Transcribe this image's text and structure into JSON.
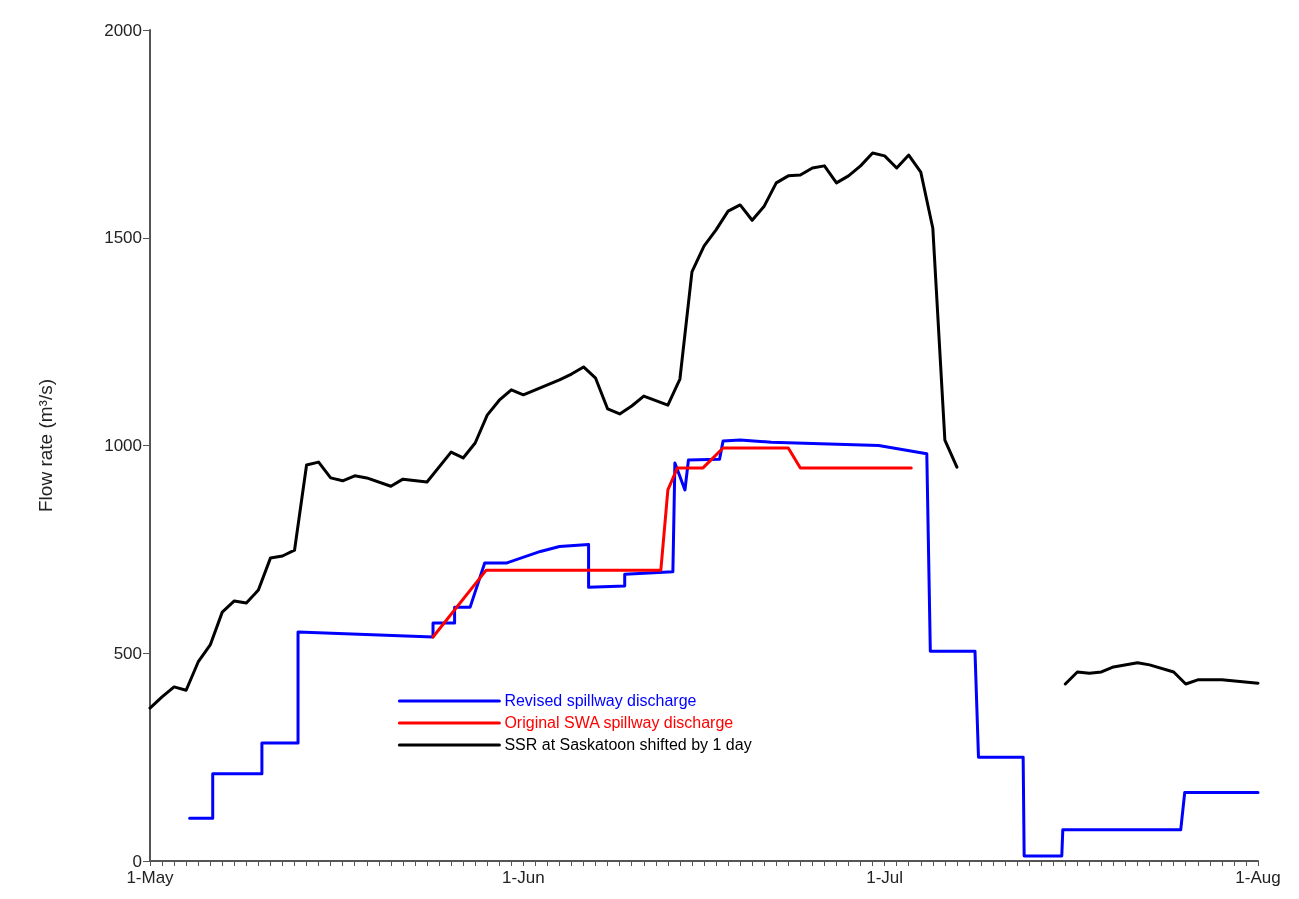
{
  "chart_data": {
    "type": "line",
    "ylabel": "Flow rate (m³/s)",
    "xlim": [
      "--05-01",
      "--08-01"
    ],
    "ylim": [
      0,
      2000
    ],
    "yticks": [
      0,
      500,
      1000,
      1500,
      2000
    ],
    "xticks": [
      {
        "value": "--05-01",
        "label": "1-May"
      },
      {
        "value": "--05-02",
        "label": null
      },
      {
        "value": "--05-03",
        "label": null
      },
      {
        "value": "--05-04",
        "label": null
      },
      {
        "value": "--05-05",
        "label": null
      },
      {
        "value": "--05-06",
        "label": null
      },
      {
        "value": "--05-07",
        "label": null
      },
      {
        "value": "--05-08",
        "label": null
      },
      {
        "value": "--05-09",
        "label": null
      },
      {
        "value": "--05-10",
        "label": null
      },
      {
        "value": "--05-11",
        "label": null
      },
      {
        "value": "--05-12",
        "label": null
      },
      {
        "value": "--05-13",
        "label": null
      },
      {
        "value": "--05-14",
        "label": null
      },
      {
        "value": "--05-15",
        "label": null
      },
      {
        "value": "--05-16",
        "label": null
      },
      {
        "value": "--05-17",
        "label": null
      },
      {
        "value": "--05-18",
        "label": null
      },
      {
        "value": "--05-19",
        "label": null
      },
      {
        "value": "--05-20",
        "label": null
      },
      {
        "value": "--05-21",
        "label": null
      },
      {
        "value": "--05-22",
        "label": null
      },
      {
        "value": "--05-23",
        "label": null
      },
      {
        "value": "--05-24",
        "label": null
      },
      {
        "value": "--05-25",
        "label": null
      },
      {
        "value": "--05-26",
        "label": null
      },
      {
        "value": "--05-27",
        "label": null
      },
      {
        "value": "--05-28",
        "label": null
      },
      {
        "value": "--05-29",
        "label": null
      },
      {
        "value": "--05-30",
        "label": null
      },
      {
        "value": "--05-31",
        "label": null
      },
      {
        "value": "--06-01",
        "label": "1-Jun"
      },
      {
        "value": "--06-02",
        "label": null
      },
      {
        "value": "--06-03",
        "label": null
      },
      {
        "value": "--06-04",
        "label": null
      },
      {
        "value": "--06-05",
        "label": null
      },
      {
        "value": "--06-06",
        "label": null
      },
      {
        "value": "--06-07",
        "label": null
      },
      {
        "value": "--06-08",
        "label": null
      },
      {
        "value": "--06-09",
        "label": null
      },
      {
        "value": "--06-10",
        "label": null
      },
      {
        "value": "--06-11",
        "label": null
      },
      {
        "value": "--06-12",
        "label": null
      },
      {
        "value": "--06-13",
        "label": null
      },
      {
        "value": "--06-14",
        "label": null
      },
      {
        "value": "--06-15",
        "label": null
      },
      {
        "value": "--06-16",
        "label": null
      },
      {
        "value": "--06-17",
        "label": null
      },
      {
        "value": "--06-18",
        "label": null
      },
      {
        "value": "--06-19",
        "label": null
      },
      {
        "value": "--06-20",
        "label": null
      },
      {
        "value": "--06-21",
        "label": null
      },
      {
        "value": "--06-22",
        "label": null
      },
      {
        "value": "--06-23",
        "label": null
      },
      {
        "value": "--06-24",
        "label": null
      },
      {
        "value": "--06-25",
        "label": null
      },
      {
        "value": "--06-26",
        "label": null
      },
      {
        "value": "--06-27",
        "label": null
      },
      {
        "value": "--06-28",
        "label": null
      },
      {
        "value": "--06-29",
        "label": null
      },
      {
        "value": "--06-30",
        "label": null
      },
      {
        "value": "--07-01",
        "label": "1-Jul"
      },
      {
        "value": "--07-02",
        "label": null
      },
      {
        "value": "--07-03",
        "label": null
      },
      {
        "value": "--07-04",
        "label": null
      },
      {
        "value": "--07-05",
        "label": null
      },
      {
        "value": "--07-06",
        "label": null
      },
      {
        "value": "--07-07",
        "label": null
      },
      {
        "value": "--07-08",
        "label": null
      },
      {
        "value": "--07-09",
        "label": null
      },
      {
        "value": "--07-10",
        "label": null
      },
      {
        "value": "--07-11",
        "label": null
      },
      {
        "value": "--07-12",
        "label": null
      },
      {
        "value": "--07-13",
        "label": null
      },
      {
        "value": "--07-14",
        "label": null
      },
      {
        "value": "--07-15",
        "label": null
      },
      {
        "value": "--07-16",
        "label": null
      },
      {
        "value": "--07-17",
        "label": null
      },
      {
        "value": "--07-18",
        "label": null
      },
      {
        "value": "--07-19",
        "label": null
      },
      {
        "value": "--07-20",
        "label": null
      },
      {
        "value": "--07-21",
        "label": null
      },
      {
        "value": "--07-22",
        "label": null
      },
      {
        "value": "--07-23",
        "label": null
      },
      {
        "value": "--07-24",
        "label": null
      },
      {
        "value": "--07-25",
        "label": null
      },
      {
        "value": "--07-26",
        "label": null
      },
      {
        "value": "--07-27",
        "label": null
      },
      {
        "value": "--07-28",
        "label": null
      },
      {
        "value": "--07-29",
        "label": null
      },
      {
        "value": "--07-30",
        "label": null
      },
      {
        "value": "--07-31",
        "label": null
      },
      {
        "value": "--08-01",
        "label": "1-Aug"
      }
    ],
    "grid": false,
    "legend": "bottom",
    "marker": "none",
    "line_style": "solid",
    "series": [
      {
        "name": "Revised spillway discharge",
        "color": "#0000ff",
        "x": [
          "--05-04T07:00",
          "--05-06T05:00",
          "--05-06T05:00",
          "--05-10T07:00",
          "--05-10T07:00",
          "--05-13T07:00",
          "--05-13T07:00",
          "--05-24T12:00",
          "--05-24T12:00",
          "--05-26T07:00",
          "--05-26T07:00",
          "--05-27T14:00",
          "--05-28T19:00",
          "--05-30T14:00",
          "--06-02T10:00",
          "--06-04",
          "--06-06T10:00",
          "--06-06T10:00",
          "--06-09T10:00",
          "--06-09T10:00",
          "--06-13T10:00",
          "--06-13T14:00",
          "--06-14T10:00",
          "--06-14T17:00",
          "--06-17T07:00",
          "--06-17T14:00",
          "--06-19",
          "--06-21T14:00",
          "--06-30T12:00",
          "--07-04T12:00",
          "--07-04T19:00",
          "--07-08T12:00",
          "--07-08T19:00",
          "--07-12T12:00",
          "--07-12T14:00",
          "--07-15T17:00",
          "--07-15T19:00",
          "--07-25T14:00",
          "--07-25T22:00",
          "--08-01"
        ],
        "values": [
          103,
          103,
          210,
          210,
          284,
          284,
          551,
          539,
          573,
          573,
          611,
          611,
          717,
          717,
          745,
          757,
          762,
          659,
          662,
          690,
          696,
          958,
          893,
          965,
          967,
          1011,
          1013,
          1008,
          1000,
          980,
          505,
          505,
          250,
          250,
          12,
          12,
          75,
          75,
          165,
          165
        ]
      },
      {
        "name": "Original SWA spillway discharge",
        "color": "#ff0000",
        "x": [
          "--05-24T12:00",
          "--05-28T22:00",
          "--06-12T10:00",
          "--06-13",
          "--06-13T19:00",
          "--06-15T22:00",
          "--06-17T14:00",
          "--06-23",
          "--06-24",
          "--07-03T05:00"
        ],
        "values": [
          539,
          700,
          700,
          893,
          946,
          946,
          994,
          994,
          946,
          946
        ]
      },
      {
        "name": "SSR at Saskatoon shifted by 1 day",
        "color": "#000000",
        "x": [
          "--05-01",
          "--05-02",
          "--05-03",
          "--05-04",
          "--05-05",
          "--05-06",
          "--05-07",
          "--05-08",
          "--05-09",
          "--05-10",
          "--05-11",
          "--05-12",
          "--05-13",
          "--05-14",
          "--05-15",
          "--05-16",
          "--05-17",
          "--05-18",
          "--05-19",
          "--05-21",
          "--05-22",
          "--05-24",
          "--05-26",
          "--05-27",
          "--05-28",
          "--05-29",
          "--05-30",
          "--05-31",
          "--06-01",
          "--06-02",
          "--06-04",
          "--06-05",
          "--06-06",
          "--06-07",
          "--06-08",
          "--06-09",
          "--06-10",
          "--06-11",
          "--06-13",
          "--06-14",
          "--06-15",
          "--06-16",
          "--06-17",
          "--06-18",
          "--06-19",
          "--06-20",
          "--06-21",
          "--06-22",
          "--06-23",
          "--06-24",
          "--06-25",
          "--06-26",
          "--06-27",
          "--06-28",
          "--06-29",
          "--06-30",
          "--07-01",
          "--07-02",
          "--07-03",
          "--07-04",
          "--07-05",
          "--07-06",
          "--07-07",
          "--07-10",
          "--07-16",
          "--07-17",
          "--07-18",
          "--07-19",
          "--07-20",
          "--07-22",
          "--07-23",
          "--07-25",
          "--07-26",
          "--07-27",
          "--07-29",
          "--08-01"
        ],
        "values": [
          368,
          395,
          419,
          411,
          479,
          520,
          599,
          626,
          621,
          652,
          729,
          734,
          748,
          953,
          960,
          922,
          915,
          927,
          922,
          902,
          919,
          912,
          984,
          970,
          1006,
          1073,
          1109,
          1134,
          1122,
          1134,
          1158,
          1172,
          1189,
          1162,
          1088,
          1076,
          1095,
          1119,
          1097,
          1160,
          1418,
          1480,
          1519,
          1564,
          1579,
          1542,
          1576,
          1632,
          1649,
          1651,
          1668,
          1673,
          1632,
          1649,
          1673,
          1704,
          1697,
          1668,
          1699,
          1658,
          1523,
          1013,
          948,
          null,
          426,
          455,
          452,
          455,
          467,
          477,
          472,
          455,
          426,
          436,
          436,
          428
        ]
      }
    ]
  }
}
